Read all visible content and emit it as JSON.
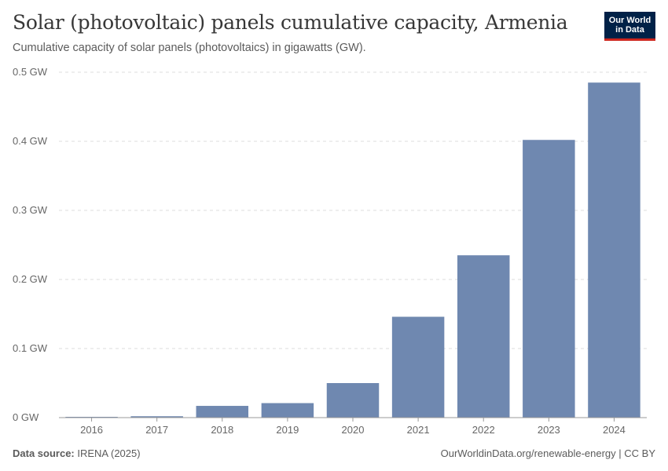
{
  "header": {
    "title": "Solar (photovoltaic) panels cumulative capacity, Armenia",
    "subtitle": "Cumulative capacity of solar panels (photovoltaics) in gigawatts (GW).",
    "logo_line1": "Our World",
    "logo_line2": "in Data"
  },
  "footer": {
    "source_label": "Data source:",
    "source_value": "IRENA (2025)",
    "right_text": "OurWorldinData.org/renewable-energy | CC BY"
  },
  "colors": {
    "bar": "#6f88b0",
    "grid": "#dddddd",
    "axis": "#999999"
  },
  "chart_data": {
    "type": "bar",
    "categories": [
      "2016",
      "2017",
      "2018",
      "2019",
      "2020",
      "2021",
      "2022",
      "2023",
      "2024"
    ],
    "values": [
      0.001,
      0.002,
      0.017,
      0.021,
      0.05,
      0.146,
      0.235,
      0.402,
      0.485
    ],
    "y_ticks": [
      0,
      0.1,
      0.2,
      0.3,
      0.4,
      0.5
    ],
    "y_tick_labels": [
      "0 GW",
      "0.1 GW",
      "0.2 GW",
      "0.3 GW",
      "0.4 GW",
      "0.5 GW"
    ],
    "ylim": [
      0,
      0.5
    ],
    "grid": true,
    "legend": "none"
  }
}
